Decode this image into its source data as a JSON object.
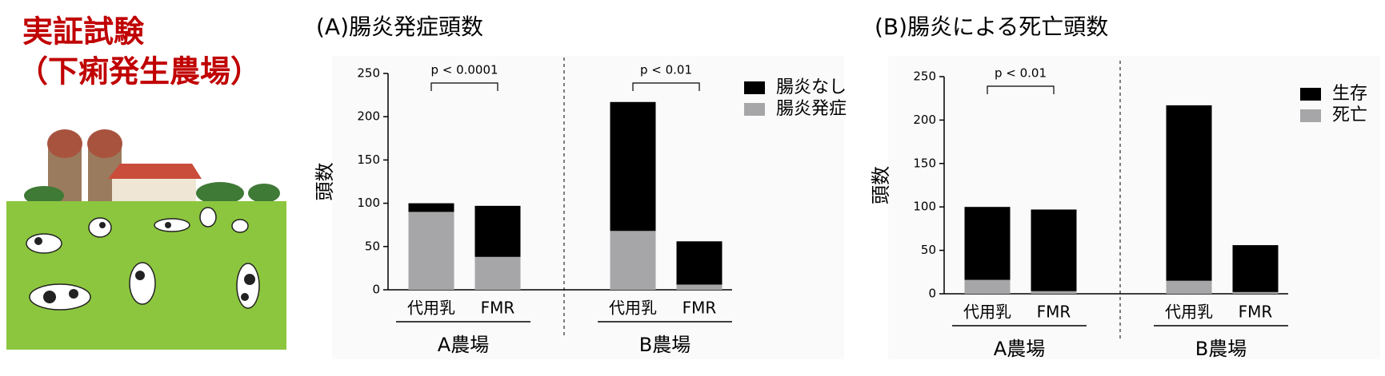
{
  "header": {
    "title": "実証試験",
    "subtitle": "（下痢発生農場）"
  },
  "chart_data": [
    {
      "type": "bar",
      "stacked": true,
      "title": "(A)腸炎発症頭数",
      "ylabel": "頭数",
      "categories": [
        "代用乳",
        "FMR",
        "代用乳",
        "FMR"
      ],
      "groups": [
        "A農場",
        "B農場"
      ],
      "series": [
        {
          "name": "腸炎発症",
          "color": "#a6a6a8",
          "values": [
            90,
            38,
            68,
            6
          ]
        },
        {
          "name": "腸炎なし",
          "color": "#000000",
          "values": [
            10,
            59,
            149,
            50
          ]
        }
      ],
      "annotations": [
        "p < 0.0001",
        "p < 0.01"
      ],
      "ylim": [
        0,
        250
      ],
      "yticks": [
        0,
        50,
        100,
        150,
        200,
        250
      ],
      "grid": false,
      "legend": "right"
    },
    {
      "type": "bar",
      "stacked": true,
      "title": "(B)腸炎による死亡頭数",
      "ylabel": "頭数",
      "categories": [
        "代用乳",
        "FMR",
        "代用乳",
        "FMR"
      ],
      "groups": [
        "A農場",
        "B農場"
      ],
      "series": [
        {
          "name": "死亡",
          "color": "#a6a6a8",
          "values": [
            16,
            3,
            15,
            2
          ]
        },
        {
          "name": "生存",
          "color": "#000000",
          "values": [
            84,
            94,
            202,
            54
          ]
        }
      ],
      "annotations": [
        "p < 0.01"
      ],
      "ylim": [
        0,
        250
      ],
      "yticks": [
        0,
        50,
        100,
        150,
        200,
        250
      ],
      "grid": false,
      "legend": "right"
    }
  ]
}
